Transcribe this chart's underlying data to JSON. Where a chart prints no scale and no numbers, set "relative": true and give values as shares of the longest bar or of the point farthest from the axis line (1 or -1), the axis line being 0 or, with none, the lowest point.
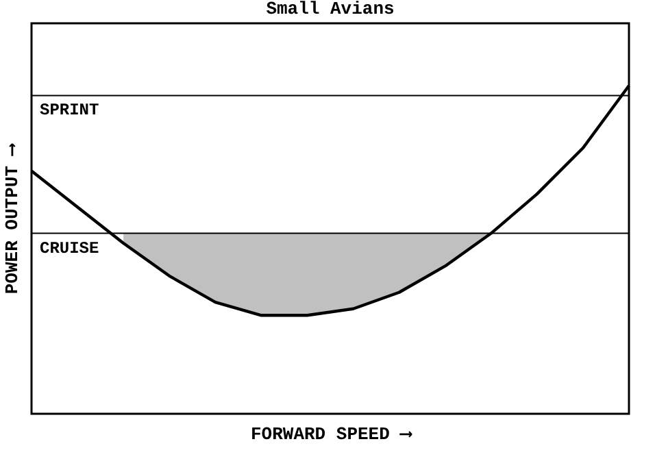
{
  "chart_data": {
    "type": "line",
    "title": "Small Avians",
    "xlabel": "FORWARD SPEED ⟶",
    "ylabel": "POWER OUTPUT ⟶",
    "relative": true,
    "grid": false,
    "marker": "none",
    "line_style": "solid",
    "categories": [
      null,
      null,
      null,
      null,
      null,
      null,
      null,
      null,
      null,
      null,
      null,
      null,
      null,
      null
    ],
    "series": [
      {
        "color": "#000000",
        "values": [
          0.74,
          0.63,
          0.52,
          0.42,
          0.34,
          0.3,
          0.3,
          0.32,
          0.37,
          0.45,
          0.55,
          0.67,
          0.81,
          1.0
        ],
        "lower": [
          null,
          null,
          0.52,
          0.42,
          0.34,
          0.3,
          0.3,
          0.32,
          0.37,
          0.45,
          0.55,
          null,
          null,
          null
        ],
        "upper": [
          null,
          null,
          0.55,
          0.55,
          0.55,
          0.55,
          0.55,
          0.55,
          0.55,
          0.55,
          0.55,
          null,
          null,
          null
        ]
      }
    ],
    "ref_lines": [
      {
        "axis": "y",
        "value": 0.97,
        "label": "SPRINT",
        "color": "#000000",
        "line_style": "solid"
      },
      {
        "axis": "y",
        "value": 0.55,
        "label": "CRUISE",
        "color": "#000000",
        "line_style": "solid"
      }
    ]
  }
}
